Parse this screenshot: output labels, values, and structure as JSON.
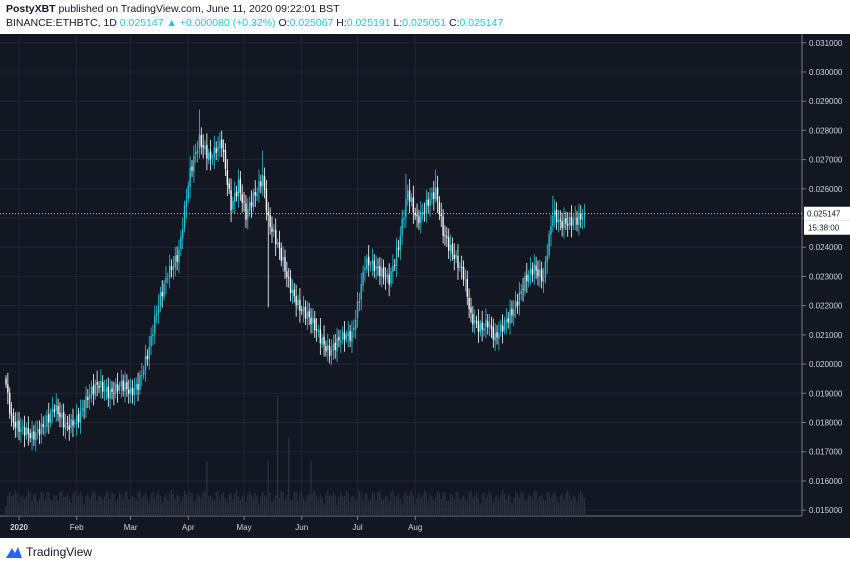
{
  "header": {
    "author": "PostyXBT",
    "published_text": "published on TradingView.com, June 11, 2020 09:22:01 BST",
    "symbol": "BINANCE:ETHBTC, 1D",
    "last_price": "0.025147",
    "change": "▲ +0.000080 (+0.32%)",
    "ohlc": [
      {
        "label": "O:",
        "value": "0.025067"
      },
      {
        "label": "H:",
        "value": "0.025191"
      },
      {
        "label": "L:",
        "value": "0.025051"
      },
      {
        "label": "C:",
        "value": "0.025147"
      }
    ]
  },
  "footer": {
    "logo_text": "TradingView"
  },
  "colors": {
    "background": "#131722",
    "grid": "#232632",
    "up_candle": "#26c6da",
    "down_candle": "#ffffff",
    "volume": "#2f3340",
    "axis_text": "#d1d4dc",
    "price_label_bg": "#ffffff"
  },
  "chart_data": {
    "type": "candlestick",
    "symbol": "BINANCE:ETHBTC",
    "interval": "1D",
    "grid": true,
    "ylim": [
      0.0148,
      0.0313
    ],
    "y_ticks": [
      "0.031000",
      "0.030000",
      "0.029000",
      "0.028000",
      "0.027000",
      "0.026000",
      "0.025000",
      "0.024000",
      "0.023000",
      "0.022000",
      "0.021000",
      "0.020000",
      "0.019000",
      "0.018000",
      "0.017000",
      "0.016000",
      "0.015000"
    ],
    "x_labels": [
      "2020",
      "Feb",
      "Mar",
      "Apr",
      "May",
      "Jun",
      "Jul",
      "Aug"
    ],
    "last_price_label": "0.025147",
    "countdown_label": "15:38:00",
    "anchors": [
      [
        0,
        0.0193
      ],
      [
        3,
        0.0182
      ],
      [
        8,
        0.0178
      ],
      [
        14,
        0.0174
      ],
      [
        20,
        0.018
      ],
      [
        26,
        0.0185
      ],
      [
        32,
        0.0178
      ],
      [
        38,
        0.0182
      ],
      [
        44,
        0.0188
      ],
      [
        50,
        0.0193
      ],
      [
        56,
        0.0191
      ],
      [
        62,
        0.0192
      ],
      [
        67,
        0.019
      ],
      [
        71,
        0.0194
      ],
      [
        77,
        0.0205
      ],
      [
        82,
        0.022
      ],
      [
        87,
        0.0232
      ],
      [
        93,
        0.0238
      ],
      [
        99,
        0.0265
      ],
      [
        104,
        0.0278
      ],
      [
        110,
        0.027
      ],
      [
        116,
        0.0275
      ],
      [
        121,
        0.0255
      ],
      [
        125,
        0.0262
      ],
      [
        129,
        0.025
      ],
      [
        134,
        0.0258
      ],
      [
        138,
        0.0265
      ],
      [
        141,
        0.025
      ],
      [
        146,
        0.024
      ],
      [
        152,
        0.0228
      ],
      [
        158,
        0.022
      ],
      [
        163,
        0.0215
      ],
      [
        168,
        0.021
      ],
      [
        174,
        0.0205
      ],
      [
        180,
        0.0208
      ],
      [
        186,
        0.021
      ],
      [
        193,
        0.0235
      ],
      [
        199,
        0.0232
      ],
      [
        206,
        0.023
      ],
      [
        211,
        0.024
      ],
      [
        216,
        0.0258
      ],
      [
        221,
        0.025
      ],
      [
        226,
        0.0255
      ],
      [
        231,
        0.0258
      ],
      [
        235,
        0.0245
      ],
      [
        241,
        0.0238
      ],
      [
        246,
        0.023
      ],
      [
        250,
        0.0215
      ],
      [
        255,
        0.0213
      ],
      [
        259,
        0.0215
      ],
      [
        263,
        0.0208
      ],
      [
        267,
        0.0212
      ],
      [
        273,
        0.022
      ],
      [
        279,
        0.0228
      ],
      [
        284,
        0.0232
      ],
      [
        289,
        0.023
      ],
      [
        291,
        0.024
      ],
      [
        294,
        0.0252
      ],
      [
        298,
        0.0247
      ],
      [
        302,
        0.0248
      ],
      [
        305,
        0.025
      ],
      [
        309,
        0.0251
      ],
      [
        311,
        0.02515
      ]
    ]
  }
}
